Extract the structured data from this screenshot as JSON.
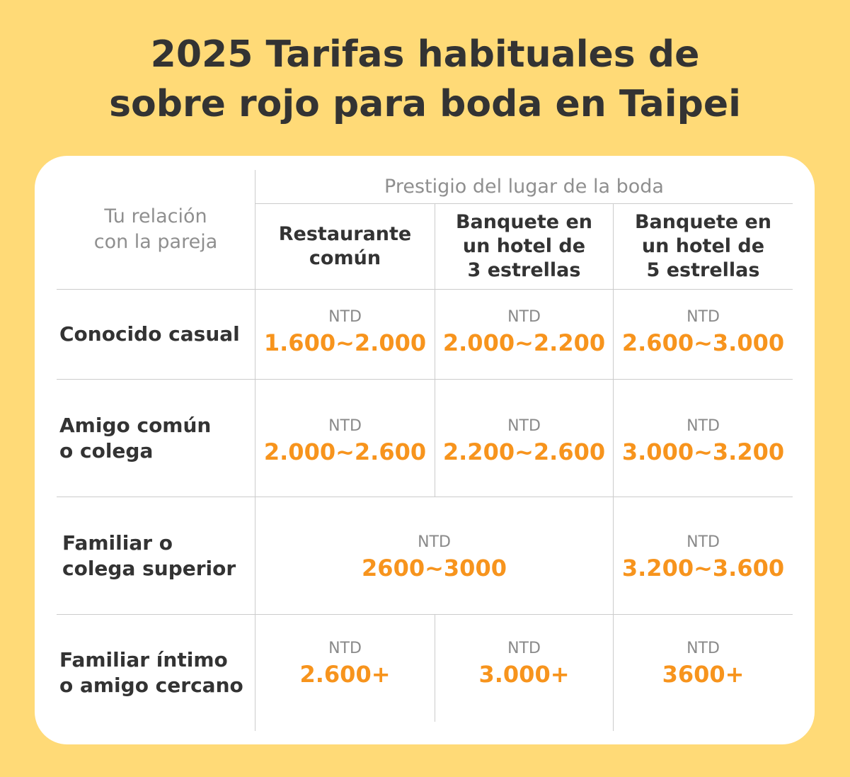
{
  "title": {
    "line1": "2025 Tarifas habituales de",
    "line2": "sobre rojo para boda en Taipei"
  },
  "table": {
    "relation_header": {
      "line1": "Tu relación",
      "line2": "con la pareja"
    },
    "venue_header": "Prestigio del lugar de la boda",
    "columns": [
      {
        "lines": [
          "Restaurante",
          "común"
        ]
      },
      {
        "lines": [
          "Banquete en",
          "un hotel de",
          "3 estrellas"
        ]
      },
      {
        "lines": [
          "Banquete en",
          "un hotel de",
          "5 estrellas"
        ]
      }
    ],
    "currency": "NTD",
    "rows": [
      {
        "label": [
          "Conocido casual"
        ],
        "values": [
          "1.600~2.000",
          "2.000~2.200",
          "2.600~3.000"
        ]
      },
      {
        "label": [
          "Amigo común",
          "o colega"
        ],
        "values": [
          "2.000~2.600",
          "2.200~2.600",
          "3.000~3.200"
        ]
      },
      {
        "label": [
          "Familiar o",
          "colega superior"
        ],
        "merged_value": "2600~3000",
        "values": [
          "3.200~3.600"
        ]
      },
      {
        "label": [
          "Familiar íntimo",
          "o amigo cercano"
        ],
        "values": [
          "2.600+",
          "3.000+",
          "3600+"
        ]
      }
    ]
  },
  "colors": {
    "background": "#FFDA77",
    "accent": "#F7941D",
    "card": "#FFFFFF"
  }
}
